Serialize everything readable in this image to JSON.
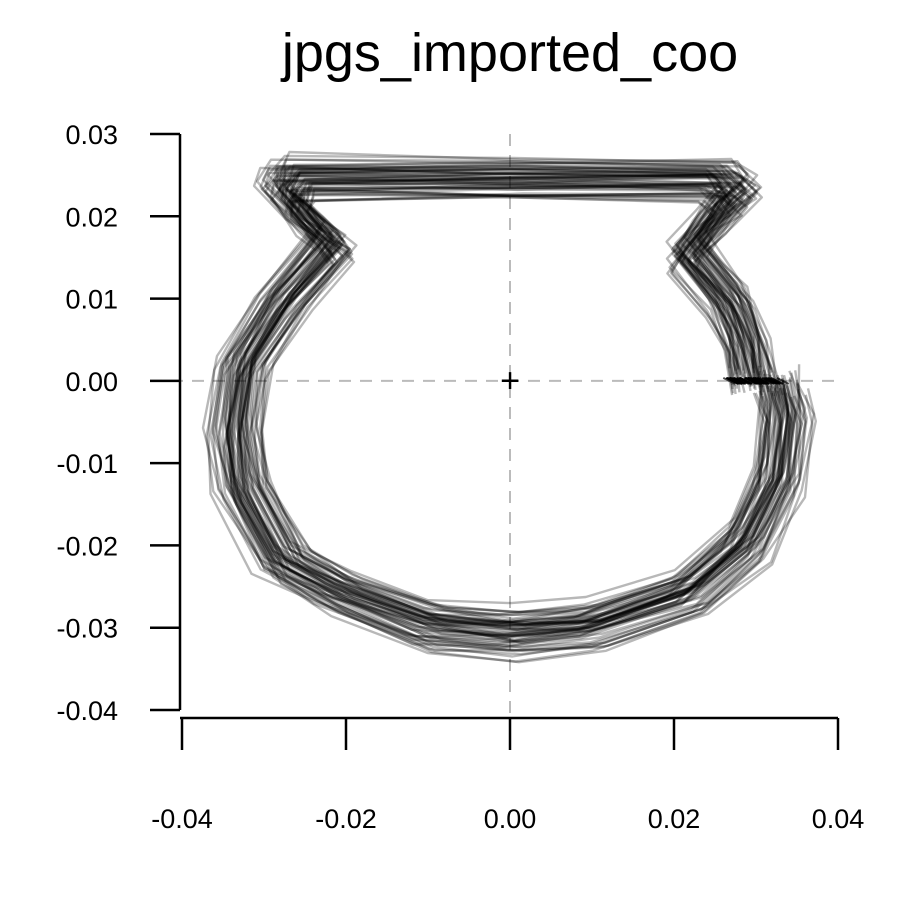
{
  "chart_data": {
    "type": "line",
    "title": "jpgs_imported_coo",
    "xlabel": "",
    "ylabel": "",
    "xlim": [
      -0.04,
      0.04
    ],
    "ylim": [
      -0.04,
      0.03
    ],
    "x_ticks": [
      "-0.04",
      "-0.02",
      "0.00",
      "0.02",
      "0.04"
    ],
    "y_ticks": [
      "0.03",
      "0.02",
      "0.01",
      "0.00",
      "-0.01",
      "-0.02",
      "-0.03",
      "-0.04"
    ],
    "grid": false,
    "reference_lines": {
      "x": 0.0,
      "y": 0.0,
      "style": "dashed",
      "color": "#bbbbbb"
    },
    "centroid_marker": {
      "x": 0.0,
      "y": 0.0,
      "symbol": "+"
    },
    "series_color": "#000000",
    "series_opacity": 0.28,
    "mean_outline": [
      [
        0.03,
        0.0
      ],
      [
        0.029,
        0.005
      ],
      [
        0.027,
        0.01
      ],
      [
        0.022,
        0.016
      ],
      [
        0.025,
        0.02
      ],
      [
        0.028,
        0.023
      ],
      [
        0.026,
        0.025
      ],
      [
        0.0,
        0.025
      ],
      [
        -0.027,
        0.025
      ],
      [
        -0.028,
        0.023
      ],
      [
        -0.024,
        0.019
      ],
      [
        -0.022,
        0.017
      ],
      [
        -0.028,
        0.01
      ],
      [
        -0.033,
        0.002
      ],
      [
        -0.034,
        -0.006
      ],
      [
        -0.033,
        -0.013
      ],
      [
        -0.028,
        -0.022
      ],
      [
        -0.021,
        -0.026
      ],
      [
        -0.01,
        -0.03
      ],
      [
        0.0,
        -0.031
      ],
      [
        0.01,
        -0.03
      ],
      [
        0.022,
        -0.026
      ],
      [
        0.029,
        -0.02
      ],
      [
        0.033,
        -0.012
      ],
      [
        0.034,
        -0.004
      ],
      [
        0.033,
        0.0
      ]
    ],
    "series": [
      {
        "values": [
          [
            0.0,
            0.0
          ],
          [
            0.0,
            0.0
          ]
        ]
      }
    ]
  }
}
